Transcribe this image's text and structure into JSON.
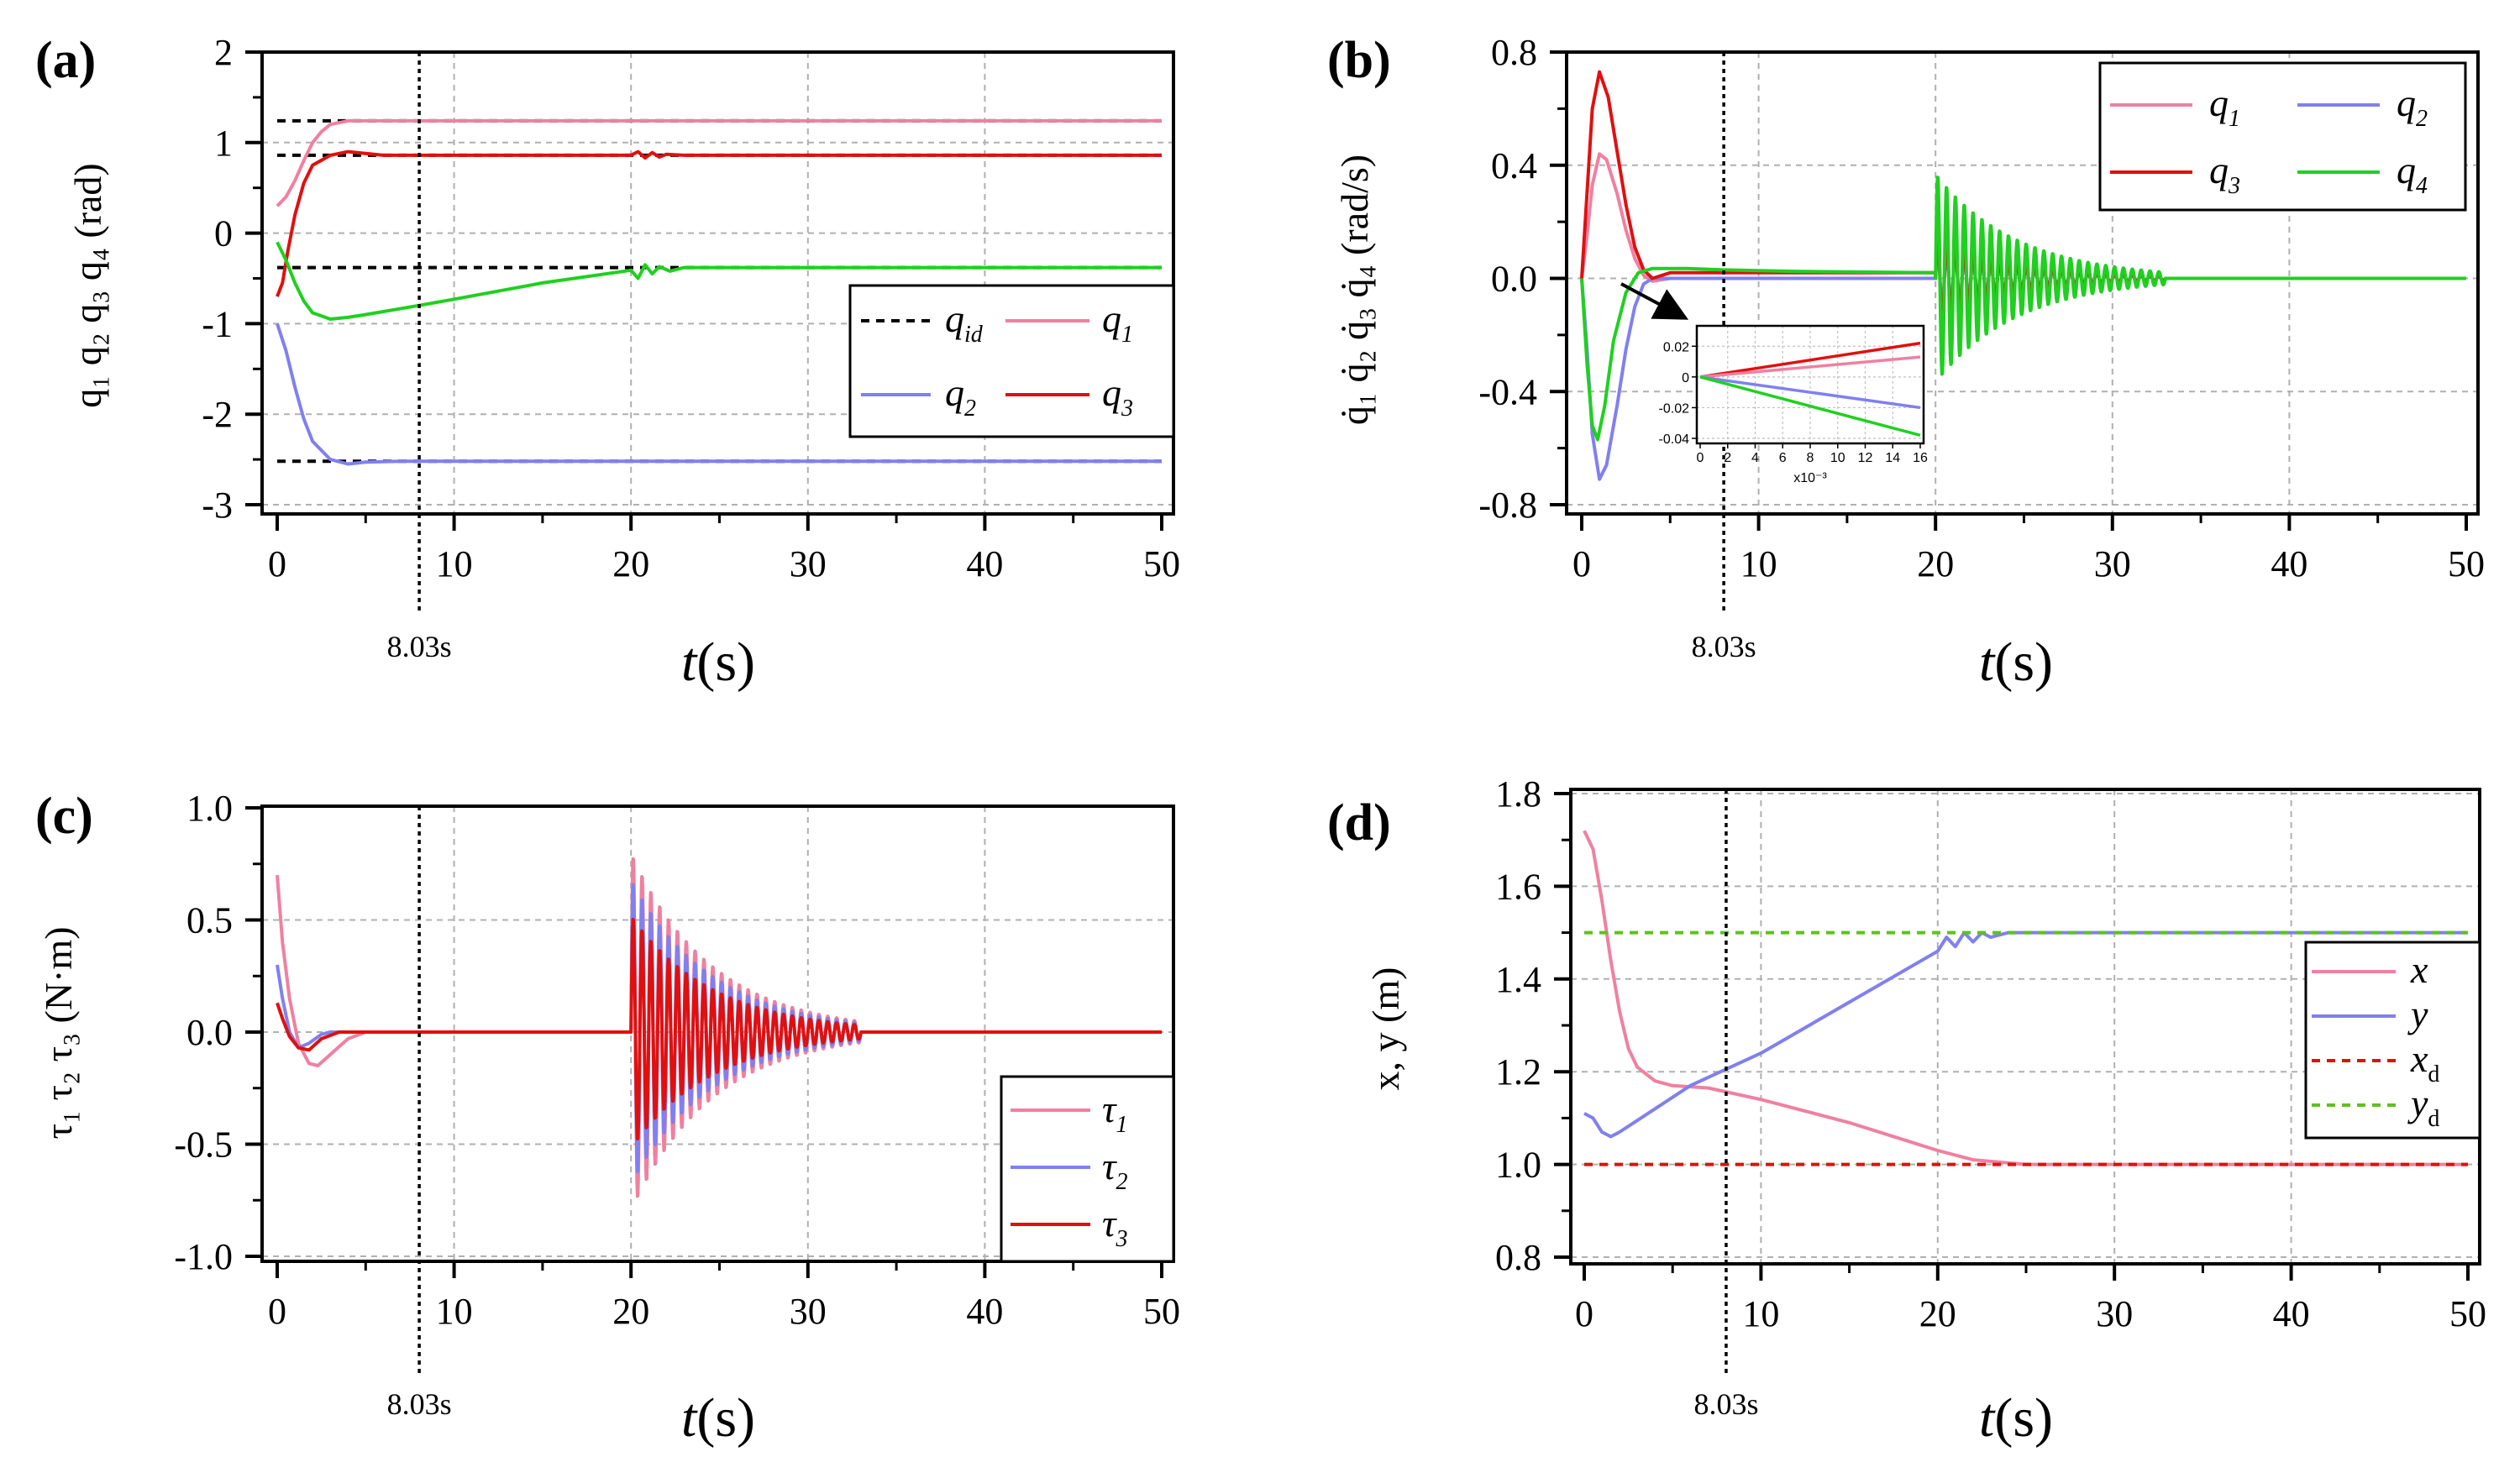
{
  "figure": {
    "annotation_text": "8.03s",
    "annotation_time": 8.03
  },
  "colors": {
    "q1": "#f080a0",
    "q2": "#8080f0",
    "q3": "#e01010",
    "q4": "#20d020",
    "ref": "#000000",
    "xd": "#e01010",
    "yd": "#60c020"
  },
  "chart_data": [
    {
      "panel": "(a)",
      "type": "line",
      "xlabel": "t(s)",
      "ylabel": "q₁ q₂ q₃ q₄ (rad)",
      "xlim": [
        0,
        50
      ],
      "ylim": [
        -3,
        2
      ],
      "xticks": [
        0,
        10,
        20,
        30,
        40,
        50
      ],
      "yticks": [
        2,
        1,
        0,
        -1,
        -2,
        -3
      ],
      "ref_lines": [
        1.24,
        0.86,
        -0.38,
        -2.52
      ],
      "legend": [
        "qid",
        "q1",
        "q2",
        "q3"
      ],
      "series": [
        {
          "name": "q1",
          "color": "q1",
          "points": [
            [
              0,
              0.3
            ],
            [
              0.5,
              0.4
            ],
            [
              1,
              0.58
            ],
            [
              1.5,
              0.8
            ],
            [
              2,
              1.0
            ],
            [
              2.5,
              1.12
            ],
            [
              3,
              1.2
            ],
            [
              4,
              1.24
            ],
            [
              50,
              1.24
            ]
          ]
        },
        {
          "name": "q2",
          "color": "q2",
          "points": [
            [
              0,
              -1.0
            ],
            [
              0.5,
              -1.3
            ],
            [
              1,
              -1.7
            ],
            [
              1.5,
              -2.05
            ],
            [
              2,
              -2.3
            ],
            [
              3,
              -2.5
            ],
            [
              4,
              -2.55
            ],
            [
              5,
              -2.53
            ],
            [
              7,
              -2.52
            ],
            [
              50,
              -2.52
            ]
          ]
        },
        {
          "name": "q3",
          "color": "q3",
          "points": [
            [
              0,
              -0.7
            ],
            [
              0.3,
              -0.55
            ],
            [
              0.6,
              -0.2
            ],
            [
              1,
              0.2
            ],
            [
              1.5,
              0.55
            ],
            [
              2,
              0.75
            ],
            [
              3,
              0.86
            ],
            [
              4,
              0.9
            ],
            [
              5,
              0.88
            ],
            [
              6,
              0.86
            ],
            [
              20,
              0.86
            ],
            [
              20.4,
              0.9
            ],
            [
              20.8,
              0.83
            ],
            [
              21.2,
              0.89
            ],
            [
              21.6,
              0.84
            ],
            [
              22,
              0.87
            ],
            [
              23,
              0.86
            ],
            [
              50,
              0.86
            ]
          ]
        },
        {
          "name": "q4",
          "color": "q4",
          "points": [
            [
              0,
              -0.1
            ],
            [
              0.5,
              -0.3
            ],
            [
              1,
              -0.55
            ],
            [
              1.5,
              -0.75
            ],
            [
              2,
              -0.88
            ],
            [
              3,
              -0.95
            ],
            [
              4,
              -0.93
            ],
            [
              5,
              -0.9
            ],
            [
              8,
              -0.8
            ],
            [
              10,
              -0.73
            ],
            [
              15,
              -0.55
            ],
            [
              20,
              -0.41
            ],
            [
              20.4,
              -0.5
            ],
            [
              20.8,
              -0.35
            ],
            [
              21.2,
              -0.45
            ],
            [
              21.6,
              -0.37
            ],
            [
              22.2,
              -0.42
            ],
            [
              23,
              -0.38
            ],
            [
              50,
              -0.38
            ]
          ]
        }
      ]
    },
    {
      "panel": "(b)",
      "type": "line",
      "xlabel": "t(s)",
      "ylabel": "q̇₁ q̇₂ q̇₃ q̇₄ (rad/s)",
      "xlim": [
        0,
        50
      ],
      "ylim": [
        -0.8,
        0.8
      ],
      "xticks": [
        0,
        10,
        20,
        30,
        40,
        50
      ],
      "yticks": [
        0.8,
        0.4,
        0.0,
        -0.4,
        -0.8
      ],
      "ytick_labels": [
        "0.8",
        "0.4",
        "0.0",
        "-0.4",
        "-0.8"
      ],
      "legend": [
        "q1",
        "q2",
        "q3",
        "q4"
      ],
      "oscillation": {
        "start": 20,
        "end": 33,
        "period": 0.5
      },
      "inset": {
        "xlim": [
          0,
          16
        ],
        "ylim": [
          -0.04,
          0.03
        ],
        "xticks": [
          0,
          2,
          4,
          6,
          8,
          10,
          12,
          14,
          16
        ],
        "yticks": [
          0.02,
          0,
          -0.02,
          -0.04
        ],
        "ytick_labels": [
          "0.02",
          "0",
          "-0.02",
          "-0.04"
        ],
        "xscale_label": "x10⁻³",
        "lines": [
          {
            "color": "q3",
            "end": 0.022
          },
          {
            "color": "q1",
            "end": 0.013
          },
          {
            "color": "q2",
            "end": -0.02
          },
          {
            "color": "q4",
            "end": -0.038
          }
        ]
      },
      "series": [
        {
          "name": "q1",
          "color": "q1",
          "points": [
            [
              0,
              0
            ],
            [
              0.3,
              0.15
            ],
            [
              0.6,
              0.33
            ],
            [
              1,
              0.44
            ],
            [
              1.4,
              0.42
            ],
            [
              2,
              0.3
            ],
            [
              2.5,
              0.17
            ],
            [
              3,
              0.07
            ],
            [
              3.5,
              0.01
            ],
            [
              4,
              -0.01
            ],
            [
              5,
              0.0
            ],
            [
              20,
              0.0
            ]
          ],
          "osc_amp": 0.12
        },
        {
          "name": "q2",
          "color": "q2",
          "points": [
            [
              0,
              0
            ],
            [
              0.3,
              -0.25
            ],
            [
              0.6,
              -0.55
            ],
            [
              1,
              -0.71
            ],
            [
              1.4,
              -0.66
            ],
            [
              2,
              -0.45
            ],
            [
              2.5,
              -0.25
            ],
            [
              3,
              -0.1
            ],
            [
              3.5,
              -0.02
            ],
            [
              4,
              0.0
            ],
            [
              20,
              0.0
            ]
          ],
          "osc_amp": 0.1
        },
        {
          "name": "q3",
          "color": "q3",
          "points": [
            [
              0,
              0
            ],
            [
              0.3,
              0.3
            ],
            [
              0.6,
              0.6
            ],
            [
              1,
              0.73
            ],
            [
              1.5,
              0.64
            ],
            [
              2,
              0.45
            ],
            [
              2.5,
              0.26
            ],
            [
              3,
              0.11
            ],
            [
              3.5,
              0.03
            ],
            [
              4,
              0.0
            ],
            [
              4.5,
              0.01
            ],
            [
              5,
              0.02
            ],
            [
              6,
              0.02
            ],
            [
              20,
              0.02
            ]
          ],
          "osc_amp": 0.16
        },
        {
          "name": "q4",
          "color": "q4",
          "points": [
            [
              0,
              0
            ],
            [
              0.3,
              -0.3
            ],
            [
              0.6,
              -0.52
            ],
            [
              0.9,
              -0.57
            ],
            [
              1.3,
              -0.45
            ],
            [
              1.8,
              -0.22
            ],
            [
              2.5,
              -0.05
            ],
            [
              3.2,
              0.02
            ],
            [
              4,
              0.035
            ],
            [
              5,
              0.035
            ],
            [
              6,
              0.035
            ],
            [
              8,
              0.03
            ],
            [
              12,
              0.025
            ],
            [
              20,
              0.02
            ]
          ],
          "osc_amp": 0.37
        }
      ]
    },
    {
      "panel": "(c)",
      "type": "line",
      "xlabel": "t(s)",
      "ylabel": "τ₁ τ₂ τ₃ (N·m)",
      "xlim": [
        0,
        50
      ],
      "ylim": [
        -1.0,
        1.0
      ],
      "xticks": [
        0,
        10,
        20,
        30,
        40,
        50
      ],
      "yticks": [
        1.0,
        0.5,
        0.0,
        -0.5,
        -1.0
      ],
      "ytick_labels": [
        "1.0",
        "0.5",
        "0.0",
        "-0.5",
        "-1.0"
      ],
      "legend": [
        "τ1",
        "τ2",
        "τ3"
      ],
      "oscillation": {
        "start": 20,
        "end": 33,
        "period": 0.5
      },
      "series": [
        {
          "name": "τ1",
          "color": "q1",
          "points": [
            [
              0,
              0.7
            ],
            [
              0.3,
              0.4
            ],
            [
              0.7,
              0.15
            ],
            [
              1.2,
              -0.05
            ],
            [
              1.8,
              -0.14
            ],
            [
              2.3,
              -0.15
            ],
            [
              3,
              -0.1
            ],
            [
              4,
              -0.03
            ],
            [
              5,
              0.0
            ],
            [
              20,
              0.0
            ]
          ],
          "osc_amp": 0.8
        },
        {
          "name": "τ2",
          "color": "q2",
          "points": [
            [
              0,
              0.3
            ],
            [
              0.3,
              0.15
            ],
            [
              0.7,
              0.0
            ],
            [
              1.2,
              -0.07
            ],
            [
              1.8,
              -0.05
            ],
            [
              2.5,
              -0.01
            ],
            [
              3,
              0.0
            ],
            [
              20,
              0.0
            ]
          ],
          "osc_amp": 0.68
        },
        {
          "name": "τ3",
          "color": "q3",
          "points": [
            [
              0,
              0.13
            ],
            [
              0.3,
              0.06
            ],
            [
              0.7,
              -0.02
            ],
            [
              1.2,
              -0.07
            ],
            [
              1.8,
              -0.08
            ],
            [
              2.5,
              -0.03
            ],
            [
              3.5,
              0.0
            ],
            [
              20,
              0.0
            ]
          ],
          "osc_amp": 0.52
        }
      ]
    },
    {
      "panel": "(d)",
      "type": "line",
      "xlabel": "t(s)",
      "ylabel": "x, y (m)",
      "xlim": [
        0,
        50
      ],
      "ylim": [
        0.8,
        1.8
      ],
      "xticks": [
        0,
        10,
        20,
        30,
        40,
        50
      ],
      "yticks": [
        1.8,
        1.6,
        1.4,
        1.2,
        1.0,
        0.8
      ],
      "ytick_labels": [
        "1.8",
        "1.6",
        "1.4",
        "1.2",
        "1.0",
        "0.8"
      ],
      "legend": [
        "x",
        "y",
        "xd",
        "yd"
      ],
      "series": [
        {
          "name": "x",
          "color": "q1",
          "points": [
            [
              0,
              1.72
            ],
            [
              0.5,
              1.68
            ],
            [
              1,
              1.57
            ],
            [
              1.5,
              1.44
            ],
            [
              2,
              1.33
            ],
            [
              2.5,
              1.25
            ],
            [
              3,
              1.21
            ],
            [
              4,
              1.18
            ],
            [
              5,
              1.17
            ],
            [
              7,
              1.165
            ],
            [
              10,
              1.14
            ],
            [
              15,
              1.09
            ],
            [
              20,
              1.03
            ],
            [
              22,
              1.01
            ],
            [
              25,
              1.0
            ],
            [
              30,
              1.0
            ],
            [
              50,
              1.0
            ]
          ]
        },
        {
          "name": "y",
          "color": "q2",
          "points": [
            [
              0,
              1.11
            ],
            [
              0.5,
              1.1
            ],
            [
              1,
              1.07
            ],
            [
              1.5,
              1.06
            ],
            [
              2,
              1.07
            ],
            [
              4,
              1.12
            ],
            [
              6,
              1.17
            ],
            [
              10,
              1.24
            ],
            [
              15,
              1.35
            ],
            [
              20,
              1.46
            ],
            [
              20.5,
              1.49
            ],
            [
              21,
              1.47
            ],
            [
              21.5,
              1.5
            ],
            [
              22,
              1.48
            ],
            [
              22.5,
              1.5
            ],
            [
              23,
              1.49
            ],
            [
              24,
              1.5
            ],
            [
              50,
              1.5
            ]
          ]
        },
        {
          "name": "xd",
          "color": "xd",
          "dashed": true,
          "points": [
            [
              0,
              1.0
            ],
            [
              50,
              1.0
            ]
          ]
        },
        {
          "name": "yd",
          "color": "yd",
          "dashed": true,
          "points": [
            [
              0,
              1.5
            ],
            [
              50,
              1.5
            ]
          ]
        }
      ]
    }
  ]
}
